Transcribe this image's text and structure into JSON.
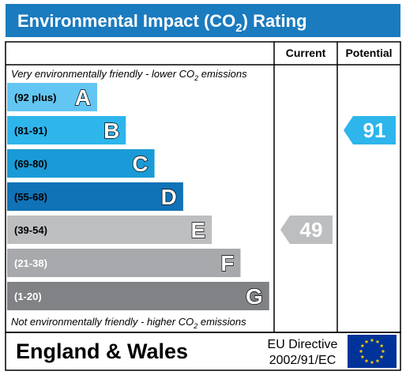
{
  "chart_data": {
    "type": "bar",
    "title": "Environmental Impact (CO",
    "title_sub": "2",
    "title_end": ") Rating",
    "columns": {
      "current": "Current",
      "potential": "Potential"
    },
    "top_note": {
      "pre": "Very environmentally friendly - lower CO",
      "sub": "2",
      "post": " emissions"
    },
    "bottom_note": {
      "pre": "Not environmentally friendly - higher CO",
      "sub": "2",
      "post": " emissions"
    },
    "bands": [
      {
        "range": "(92 plus)",
        "letter": "A",
        "min": 92,
        "max": 100,
        "color": "#63c5f2",
        "text_color": "#000000"
      },
      {
        "range": "(81-91)",
        "letter": "B",
        "min": 81,
        "max": 91,
        "color": "#2db5ec",
        "text_color": "#000000"
      },
      {
        "range": "(69-80)",
        "letter": "C",
        "min": 69,
        "max": 80,
        "color": "#1a9ad6",
        "text_color": "#000000"
      },
      {
        "range": "(55-68)",
        "letter": "D",
        "min": 55,
        "max": 68,
        "color": "#1072b7",
        "text_color": "#000000"
      },
      {
        "range": "(39-54)",
        "letter": "E",
        "min": 39,
        "max": 54,
        "color": "#bcbec0",
        "text_color": "#000000"
      },
      {
        "range": "(21-38)",
        "letter": "F",
        "min": 21,
        "max": 38,
        "color": "#a7a9ac",
        "text_color": "#ffffff"
      },
      {
        "range": "(1-20)",
        "letter": "G",
        "min": 1,
        "max": 20,
        "color": "#808285",
        "text_color": "#ffffff"
      }
    ],
    "current": {
      "value": 49,
      "color": "#bcbec0"
    },
    "potential": {
      "value": 91,
      "color": "#2db5ec"
    }
  },
  "footer": {
    "region": "England & Wales",
    "directive_line1": "EU Directive",
    "directive_line2": "2002/91/EC"
  },
  "colors": {
    "header": "#1a7bbf",
    "eu_flag": "#003399",
    "eu_star": "#ffcc00"
  }
}
